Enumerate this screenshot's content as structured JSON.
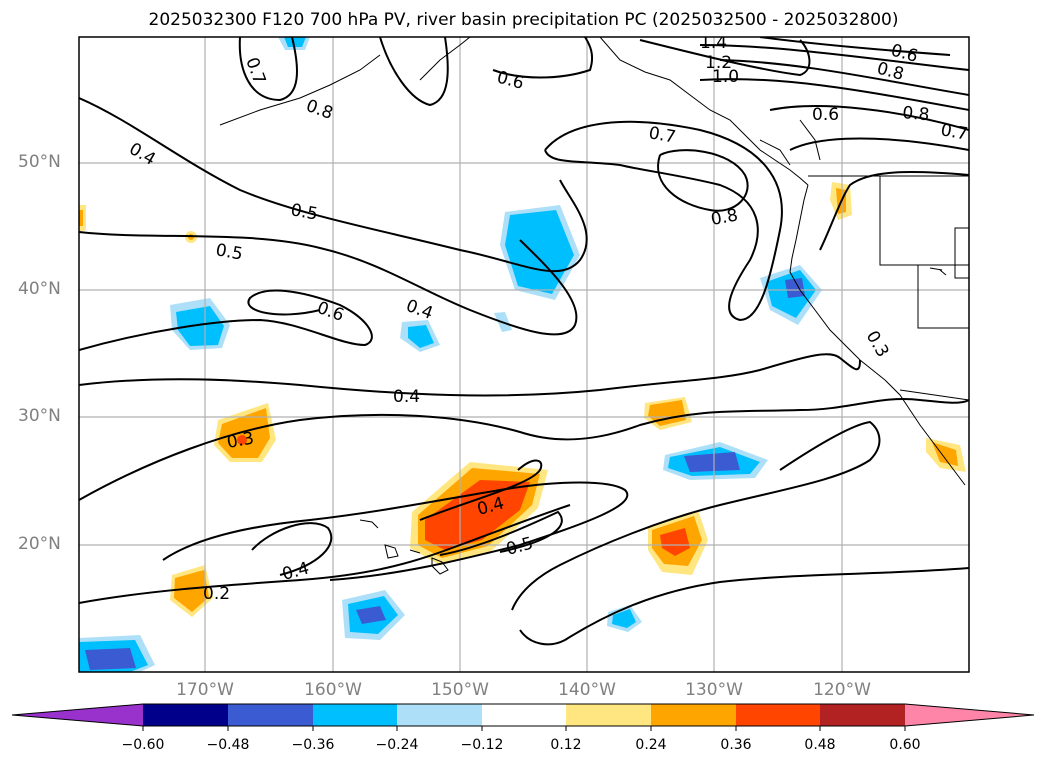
{
  "title": "2025032300 F120 700 hPa PV, river basin precipitation PC (2025032500 - 2025032800)",
  "map": {
    "lat_labels": [
      "50°N",
      "40°N",
      "30°N",
      "20°N"
    ],
    "lon_labels": [
      "170°W",
      "160°W",
      "150°W",
      "140°W",
      "130°W",
      "120°W"
    ],
    "contour_labels": [
      "0.7",
      "0.8",
      "0.4",
      "0.6",
      "1.4",
      "1.2",
      "1.0",
      "0.6",
      "0.8",
      "0.6",
      "0.8",
      "0.7",
      "0.7",
      "0.5",
      "0.5",
      "0.8",
      "0.6",
      "0.4",
      "0.4",
      "0.3",
      "0.3",
      "0.4",
      "0.5",
      "0.4",
      "0.2"
    ]
  },
  "colorbar": {
    "levels": [
      "−0.60",
      "−0.48",
      "−0.36",
      "−0.24",
      "−0.12",
      "0.12",
      "0.24",
      "0.36",
      "0.48",
      "0.60"
    ],
    "colors": [
      "#9932CC",
      "#00008B",
      "#3A5BD1",
      "#00BFFF",
      "#ADE0F8",
      "#FFFFFF",
      "#FFE680",
      "#FFA500",
      "#FF4500",
      "#B22222",
      "#FF85A8"
    ]
  }
}
